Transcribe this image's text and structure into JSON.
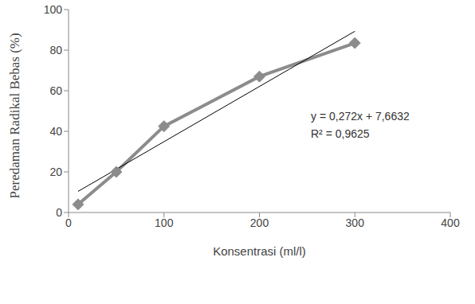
{
  "chart_data": {
    "type": "line",
    "x_label": "Konsentrasi  (ml/l)",
    "y_label": "Peredaman Radikal Bebas (%)",
    "annotations": [
      "y = 0,272x + 7,6632",
      "R² = 0,9625"
    ],
    "xlim": [
      0,
      400
    ],
    "xticks": [
      0,
      100,
      200,
      300,
      400
    ],
    "ylim": [
      0,
      100
    ],
    "yticks": [
      0,
      20,
      40,
      60,
      80,
      100
    ],
    "grid": false,
    "series": [
      {
        "color": "#8c8c8c",
        "marker": "diamond",
        "line_style": "solid",
        "x": [
          10,
          50,
          100,
          200,
          300
        ],
        "values": [
          4,
          20,
          42.5,
          67,
          83.5
        ]
      },
      {
        "color": "#000000",
        "marker": "none",
        "line_style": "solid",
        "x": [
          10,
          300
        ],
        "values": [
          10.4,
          89.3
        ]
      }
    ]
  }
}
